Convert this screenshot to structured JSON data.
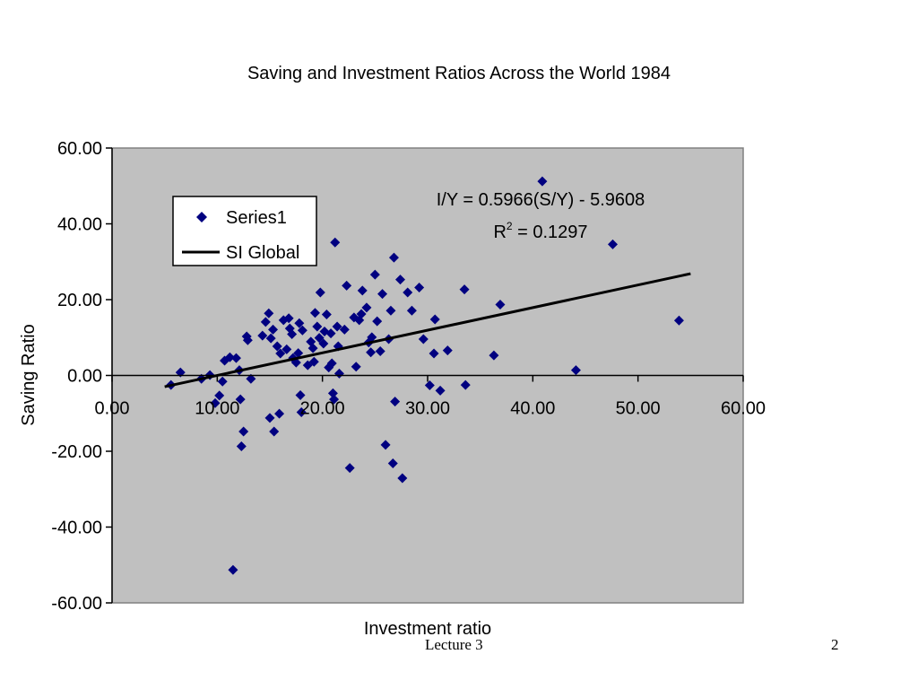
{
  "footer": {
    "lecture": "Lecture 3",
    "page": "2"
  },
  "colors": {
    "plot_bg": "#c0c0c0",
    "marker": "#000080",
    "trend": "#000000",
    "axis": "#000000"
  },
  "chart_data": {
    "type": "scatter",
    "title": "Saving and Investment Ratios Across the World 1984",
    "xlabel": "Investment ratio",
    "ylabel": "Saving Ratio",
    "xlim": [
      0,
      60
    ],
    "ylim": [
      -60,
      60
    ],
    "x_ticks": [
      0,
      10,
      20,
      30,
      40,
      50,
      60
    ],
    "y_ticks": [
      -60,
      -40,
      -20,
      0,
      20,
      40,
      60
    ],
    "x_tick_labels": [
      "0.00",
      "10.00",
      "20.00",
      "30.00",
      "40.00",
      "50.00",
      "60.00"
    ],
    "y_tick_labels": [
      "-60.00",
      "-40.00",
      "-20.00",
      "0.00",
      "20.00",
      "40.00",
      "60.00"
    ],
    "grid": false,
    "legend": {
      "placement": "upper-left",
      "entries": [
        {
          "label": "Series1",
          "marker": "diamond"
        },
        {
          "label": "SI Global",
          "marker": "line"
        }
      ]
    },
    "trendline": {
      "name": "SI Global",
      "slope": 0.5966,
      "intercept": -5.9608,
      "x_range": [
        5,
        55
      ]
    },
    "equation_text": "I/Y = 0.5966(S/Y) - 5.9608",
    "r2_label": "R",
    "r2_sup": "2",
    "r2_value": " = 0.1297",
    "series": [
      {
        "name": "Series1",
        "points": [
          [
            5.6,
            -2.5
          ],
          [
            6.5,
            0.8
          ],
          [
            8.5,
            -0.9
          ],
          [
            9.3,
            0.1
          ],
          [
            9.8,
            -7.3
          ],
          [
            10.2,
            -5.3
          ],
          [
            10.5,
            -1.6
          ],
          [
            10.7,
            3.9
          ],
          [
            11.2,
            4.8
          ],
          [
            11.5,
            -51.3
          ],
          [
            11.8,
            4.6
          ],
          [
            12.1,
            1.4
          ],
          [
            12.2,
            -6.3
          ],
          [
            12.3,
            -18.7
          ],
          [
            12.5,
            -14.8
          ],
          [
            12.8,
            10.3
          ],
          [
            12.9,
            9.3
          ],
          [
            13.2,
            -0.9
          ],
          [
            14.3,
            10.5
          ],
          [
            14.6,
            14.1
          ],
          [
            14.9,
            16.4
          ],
          [
            15.1,
            9.8
          ],
          [
            15.0,
            -11.2
          ],
          [
            15.3,
            12.1
          ],
          [
            15.4,
            -14.8
          ],
          [
            15.7,
            7.7
          ],
          [
            15.9,
            -10.1
          ],
          [
            16.0,
            5.8
          ],
          [
            16.3,
            14.6
          ],
          [
            16.6,
            6.9
          ],
          [
            16.8,
            15.1
          ],
          [
            16.9,
            12.4
          ],
          [
            17.1,
            10.9
          ],
          [
            17.2,
            4.6
          ],
          [
            17.5,
            3.4
          ],
          [
            17.7,
            5.9
          ],
          [
            17.8,
            13.8
          ],
          [
            17.9,
            -5.2
          ],
          [
            18.0,
            -9.7
          ],
          [
            18.1,
            11.9
          ],
          [
            18.6,
            2.7
          ],
          [
            18.9,
            8.9
          ],
          [
            19.1,
            7.2
          ],
          [
            19.2,
            3.6
          ],
          [
            19.3,
            16.5
          ],
          [
            19.5,
            12.9
          ],
          [
            19.7,
            9.9
          ],
          [
            19.8,
            21.9
          ],
          [
            20.1,
            8.4
          ],
          [
            20.2,
            11.6
          ],
          [
            20.4,
            16.1
          ],
          [
            20.6,
            2.1
          ],
          [
            20.8,
            11.1
          ],
          [
            20.9,
            3.2
          ],
          [
            21.0,
            -4.7
          ],
          [
            21.1,
            -6.3
          ],
          [
            21.2,
            35.1
          ],
          [
            21.4,
            12.9
          ],
          [
            21.5,
            7.7
          ],
          [
            21.6,
            0.5
          ],
          [
            22.1,
            12.1
          ],
          [
            22.3,
            23.7
          ],
          [
            22.6,
            -24.4
          ],
          [
            23.0,
            15.3
          ],
          [
            23.2,
            2.3
          ],
          [
            23.5,
            14.6
          ],
          [
            23.7,
            16.2
          ],
          [
            23.8,
            22.4
          ],
          [
            24.2,
            17.9
          ],
          [
            24.4,
            8.7
          ],
          [
            24.6,
            6.1
          ],
          [
            24.7,
            10.1
          ],
          [
            25.0,
            26.6
          ],
          [
            25.2,
            14.3
          ],
          [
            25.5,
            6.4
          ],
          [
            25.7,
            21.5
          ],
          [
            26.0,
            -18.3
          ],
          [
            26.3,
            9.6
          ],
          [
            26.5,
            17.1
          ],
          [
            26.7,
            -23.2
          ],
          [
            26.8,
            31.1
          ],
          [
            26.9,
            -6.9
          ],
          [
            27.4,
            25.3
          ],
          [
            27.6,
            -27.1
          ],
          [
            28.1,
            21.9
          ],
          [
            28.5,
            17.1
          ],
          [
            29.2,
            23.2
          ],
          [
            29.6,
            9.6
          ],
          [
            30.2,
            -2.6
          ],
          [
            30.6,
            5.8
          ],
          [
            30.7,
            14.8
          ],
          [
            31.2,
            -4.0
          ],
          [
            31.9,
            6.6
          ],
          [
            33.5,
            22.7
          ],
          [
            33.6,
            -2.5
          ],
          [
            36.3,
            5.3
          ],
          [
            36.9,
            18.7
          ],
          [
            40.9,
            51.2
          ],
          [
            44.1,
            1.4
          ],
          [
            47.6,
            34.6
          ],
          [
            53.9,
            14.5
          ]
        ]
      }
    ]
  }
}
